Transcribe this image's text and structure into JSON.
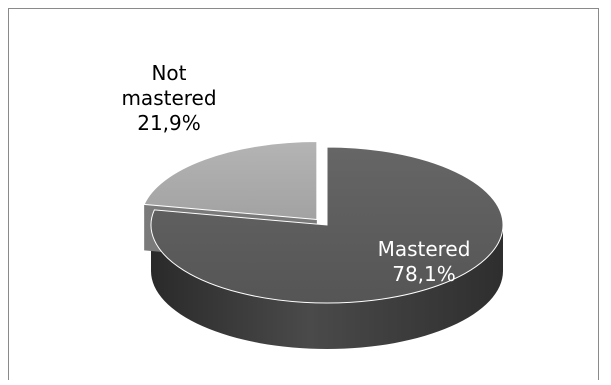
{
  "chart_data": {
    "type": "pie",
    "title": "",
    "style": "3d-exploded",
    "series": [
      {
        "name": "",
        "labels": [
          "Mastered",
          "Not mastered"
        ],
        "values": [
          78.1,
          21.9
        ]
      }
    ],
    "slices": [
      {
        "label": "Mastered",
        "value": 78.1,
        "value_label": "78,1%",
        "color": "#595959"
      },
      {
        "label": "Not mastered",
        "value": 21.9,
        "value_label": "21,9%",
        "color": "#a6a6a6"
      }
    ],
    "legend": "none"
  }
}
